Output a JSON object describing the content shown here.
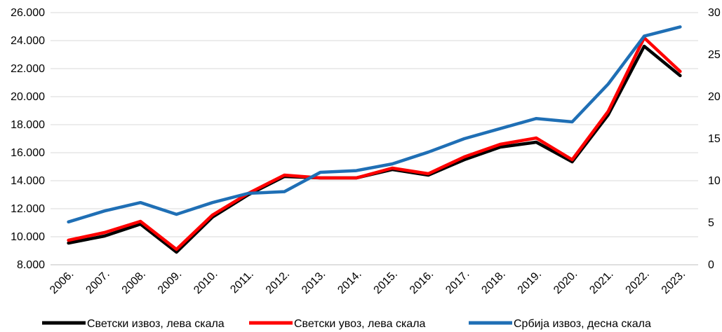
{
  "chart_data": {
    "type": "line",
    "title": "",
    "xlabel": "",
    "ylabel": "",
    "categories": [
      "2006.",
      "2007.",
      "2008.",
      "2009.",
      "2010.",
      "2011.",
      "2012.",
      "2013.",
      "2014.",
      "2015.",
      "2016.",
      "2017.",
      "2018.",
      "2019.",
      "2020.",
      "2021.",
      "2022.",
      "2023."
    ],
    "left_axis": {
      "ylim": [
        8000,
        26000
      ],
      "ticks": [
        "8.000",
        "10.000",
        "12.000",
        "14.000",
        "16.000",
        "18.000",
        "20.000",
        "22.000",
        "24.000",
        "26.000"
      ],
      "tick_values": [
        8000,
        10000,
        12000,
        14000,
        16000,
        18000,
        20000,
        22000,
        24000,
        26000
      ]
    },
    "right_axis": {
      "ylim": [
        0,
        30
      ],
      "ticks": [
        "0",
        "5",
        "10",
        "15",
        "20",
        "25",
        "30"
      ],
      "tick_values": [
        0,
        5,
        10,
        15,
        20,
        25,
        30
      ]
    },
    "grid": true,
    "legend_position": "bottom",
    "series": [
      {
        "name": "Светски извоз, лева скала",
        "axis": "left",
        "color": "#000000",
        "values": [
          9550,
          10050,
          10900,
          8900,
          11400,
          13000,
          14300,
          14200,
          14200,
          14800,
          14400,
          15500,
          16400,
          16750,
          15350,
          18700,
          23600,
          21500
        ]
      },
      {
        "name": "Светски увоз, лева скала",
        "axis": "left",
        "color": "#ff0000",
        "values": [
          9750,
          10300,
          11100,
          9100,
          11550,
          13100,
          14400,
          14200,
          14200,
          14900,
          14500,
          15700,
          16600,
          17050,
          15500,
          18950,
          24200,
          21800
        ]
      },
      {
        "name": "Србија извоз, десна скала",
        "axis": "right",
        "color": "#1f6fb5",
        "values": [
          5.1,
          6.4,
          7.4,
          6.0,
          7.4,
          8.5,
          8.7,
          11.0,
          11.2,
          12.0,
          13.4,
          15.0,
          16.2,
          17.4,
          17.0,
          21.5,
          27.2,
          28.3
        ]
      }
    ]
  }
}
